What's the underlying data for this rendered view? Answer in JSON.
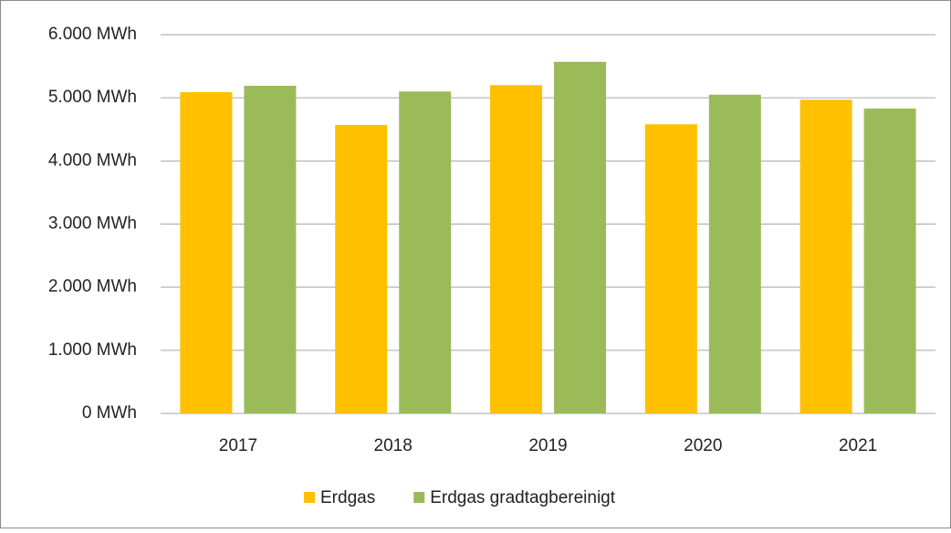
{
  "chart_data": {
    "type": "bar",
    "categories": [
      "2017",
      "2018",
      "2019",
      "2020",
      "2021"
    ],
    "series": [
      {
        "name": "Erdgas",
        "color": "#ffc000",
        "values": [
          5090,
          4570,
          5200,
          4580,
          4970
        ]
      },
      {
        "name": "Erdgas gradtagbereinigt",
        "color": "#9bbb59",
        "values": [
          5190,
          5100,
          5570,
          5050,
          4830
        ]
      }
    ],
    "ylim": [
      0,
      6000
    ],
    "yticks": [
      {
        "value": 0,
        "label": "0 MWh"
      },
      {
        "value": 1000,
        "label": "1.000 MWh"
      },
      {
        "value": 2000,
        "label": "2.000 MWh"
      },
      {
        "value": 3000,
        "label": "3.000 MWh"
      },
      {
        "value": 4000,
        "label": "4.000 MWh"
      },
      {
        "value": 5000,
        "label": "5.000 MWh"
      },
      {
        "value": 6000,
        "label": "6.000 MWh"
      }
    ],
    "grid": true,
    "legend": "bottom"
  }
}
